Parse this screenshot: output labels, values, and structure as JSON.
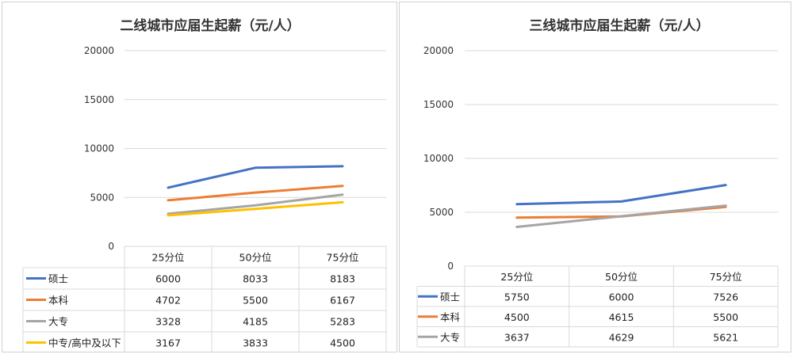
{
  "chart_data": [
    {
      "type": "line",
      "title": "二线城市应届生起薪（元/人）",
      "categories": [
        "25分位",
        "50分位",
        "75分位"
      ],
      "ylim": [
        0,
        20000
      ],
      "yticks": [
        "0",
        "5000",
        "10000",
        "15000",
        "20000"
      ],
      "grid": true,
      "legend": "data-table-left",
      "series": [
        {
          "name": "硕士",
          "color": "#4472C4",
          "values": [
            6000,
            8033,
            8183
          ],
          "labels": [
            "6000",
            "8033",
            "8183"
          ]
        },
        {
          "name": "本科",
          "color": "#ED7D31",
          "values": [
            4702,
            5500,
            6167
          ],
          "labels": [
            "4702",
            "5500",
            "6167"
          ]
        },
        {
          "name": "大专",
          "color": "#A5A5A5",
          "values": [
            3328,
            4185,
            5283
          ],
          "labels": [
            "3328",
            "4185",
            "5283"
          ]
        },
        {
          "name": "中专/高中及以下",
          "color": "#FFC000",
          "values": [
            3167,
            3833,
            4500
          ],
          "labels": [
            "3167",
            "3833",
            "4500"
          ]
        }
      ]
    },
    {
      "type": "line",
      "title": "三线城市应届生起薪（元/人）",
      "categories": [
        "25分位",
        "50分位",
        "75分位"
      ],
      "ylim": [
        0,
        20000
      ],
      "yticks": [
        "0",
        "5000",
        "10000",
        "15000",
        "20000"
      ],
      "grid": true,
      "legend": "data-table-left",
      "series": [
        {
          "name": "硕士",
          "color": "#4472C4",
          "values": [
            5750,
            6000,
            7526
          ],
          "labels": [
            "5750",
            "6000",
            "7526"
          ]
        },
        {
          "name": "本科",
          "color": "#ED7D31",
          "values": [
            4500,
            4615,
            5500
          ],
          "labels": [
            "4500",
            "4615",
            "5500"
          ]
        },
        {
          "name": "大专",
          "color": "#A5A5A5",
          "values": [
            3637,
            4629,
            5621
          ],
          "labels": [
            "3637",
            "4629",
            "5621"
          ]
        }
      ]
    }
  ]
}
